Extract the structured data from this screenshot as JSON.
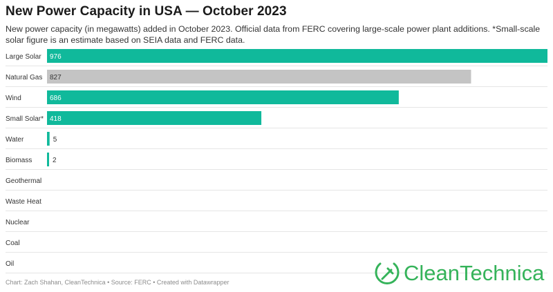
{
  "header": {
    "title": "New Power Capacity in USA — October 2023",
    "subtitle": "New power capacity (in megawatts) added in October 2023. Official data from FERC covering large-scale power plant additions. *Small-scale solar figure is an estimate based on SEIA data and FERC data."
  },
  "footer": {
    "credits": "Chart: Zach Shahan, CleanTechnica • Source: FERC • Created with Datawrapper"
  },
  "logo": {
    "brand_first": "Clean",
    "brand_second": "Technica",
    "brand_color": "#35b35a",
    "icon": "plug-leaf-icon"
  },
  "chart_data": {
    "type": "bar",
    "orientation": "horizontal",
    "unit": "megawatts",
    "categories": [
      "Large Solar",
      "Natural Gas",
      "Wind",
      "Small Solar*",
      "Water",
      "Biomass",
      "Geothermal",
      "Waste Heat",
      "Nuclear",
      "Coal",
      "Oil"
    ],
    "values": [
      976,
      827,
      686,
      418,
      5,
      2,
      null,
      null,
      null,
      null,
      null
    ],
    "colors": [
      "#10b99b",
      "#c4c4c4",
      "#10b99b",
      "#10b99b",
      "#10b99b",
      "#10b99b",
      "#10b99b",
      "#10b99b",
      "#10b99b",
      "#10b99b",
      "#10b99b"
    ],
    "xlim": [
      0,
      976
    ],
    "grid": false,
    "legend": "none"
  }
}
